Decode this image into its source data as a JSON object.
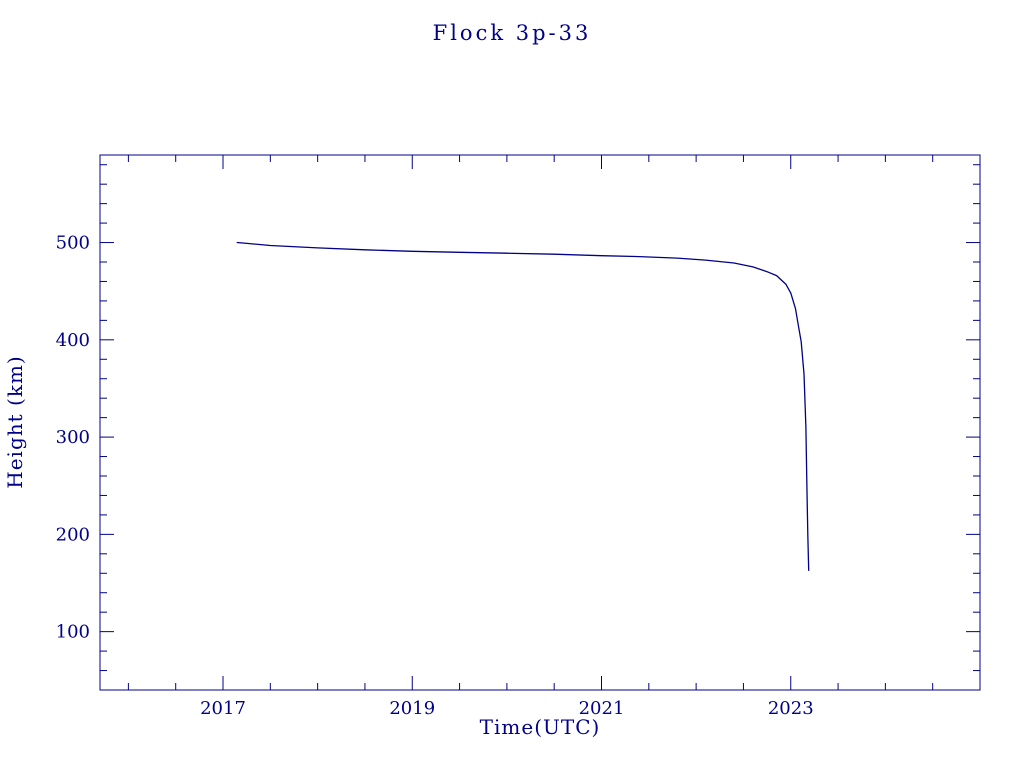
{
  "page": {
    "background": "#ffffff"
  },
  "chart_data": {
    "type": "line",
    "title": "Flock 3p-33",
    "xlabel": "Time(UTC)",
    "ylabel": "Height (km)",
    "xlim": [
      2015.7,
      2025.0
    ],
    "ylim": [
      40,
      590
    ],
    "xticks": [
      2017,
      2019,
      2021,
      2023
    ],
    "yticks": [
      100,
      200,
      300,
      400,
      500
    ],
    "x_minor_step": 0.5,
    "y_minor_step": 20,
    "grid": false,
    "legend": false,
    "line_color": "#000088",
    "axis_color": "#000088",
    "text_color": "#000088",
    "series": [
      {
        "name": "Flock 3p-33 orbital height",
        "x": [
          2017.15,
          2017.5,
          2018.0,
          2018.5,
          2019.0,
          2019.5,
          2020.0,
          2020.5,
          2021.0,
          2021.4,
          2021.8,
          2022.1,
          2022.4,
          2022.6,
          2022.75,
          2022.85,
          2022.95,
          2023.0,
          2023.05,
          2023.08,
          2023.11,
          2023.14,
          2023.16,
          2023.17,
          2023.18,
          2023.19
        ],
        "y": [
          500,
          497,
          494.5,
          492.5,
          491,
          490,
          489,
          488,
          486.5,
          485.5,
          484,
          482,
          479,
          475,
          470,
          466,
          457,
          448,
          432,
          415,
          398,
          365,
          310,
          255,
          200,
          163
        ]
      }
    ]
  }
}
